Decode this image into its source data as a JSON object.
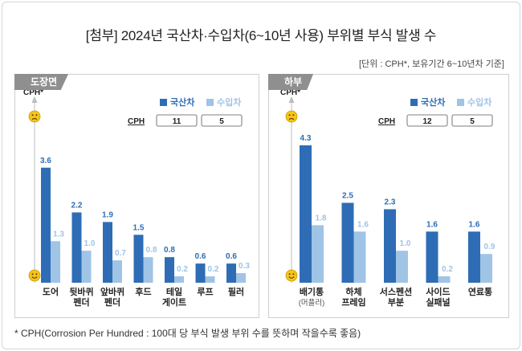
{
  "title": "[첨부] 2024년 국산차·수입차(6~10년 사용) 부위별 부식 발생 수",
  "unit_note": "[단위 : CPH*, 보유기간 6~10년차 기준]",
  "footnote": "* CPH(Corrosion Per Hundred : 100대 당 부식 발생 부위 수를 뜻하며 작을수록 좋음)",
  "colors": {
    "domestic": "#2e6db5",
    "imported": "#9fc4e6",
    "tab": "#8f8f8f"
  },
  "icons": {
    "top": "sad-face-icon",
    "bottom": "happy-face-icon"
  },
  "chart_data": [
    {
      "type": "bar",
      "panel": "도장면",
      "ylabel": "CPH*",
      "legend": {
        "placement": "top-right",
        "cph_label": "CPH",
        "totals": [
          "11",
          "5"
        ]
      },
      "categories": [
        [
          "도어"
        ],
        [
          "뒷바퀴",
          "펜더"
        ],
        [
          "앞바퀴",
          "펜더"
        ],
        [
          "후드"
        ],
        [
          "테일",
          "게이트"
        ],
        [
          "루프"
        ],
        [
          "필러"
        ]
      ],
      "series": [
        {
          "name": "국산차",
          "values": [
            3.6,
            2.2,
            1.9,
            1.5,
            0.8,
            0.6,
            0.6
          ]
        },
        {
          "name": "수입차",
          "values": [
            1.3,
            1.0,
            0.7,
            0.8,
            0.2,
            0.2,
            0.3
          ]
        }
      ],
      "ylim": [
        0,
        4.8
      ]
    },
    {
      "type": "bar",
      "panel": "하부",
      "ylabel": "CPH*",
      "legend": {
        "placement": "top-right",
        "cph_label": "CPH",
        "totals": [
          "12",
          "5"
        ]
      },
      "categories": [
        [
          "배기통",
          "(머플러)"
        ],
        [
          "하체",
          "프레임"
        ],
        [
          "서스펜션",
          "부분"
        ],
        [
          "사이드",
          "실패널"
        ],
        [
          "연료통"
        ]
      ],
      "series": [
        {
          "name": "국산차",
          "values": [
            4.3,
            2.5,
            2.3,
            1.6,
            1.6
          ]
        },
        {
          "name": "수입차",
          "values": [
            1.8,
            1.6,
            1.0,
            0.2,
            0.9
          ]
        }
      ],
      "ylim": [
        0,
        4.8
      ]
    }
  ]
}
